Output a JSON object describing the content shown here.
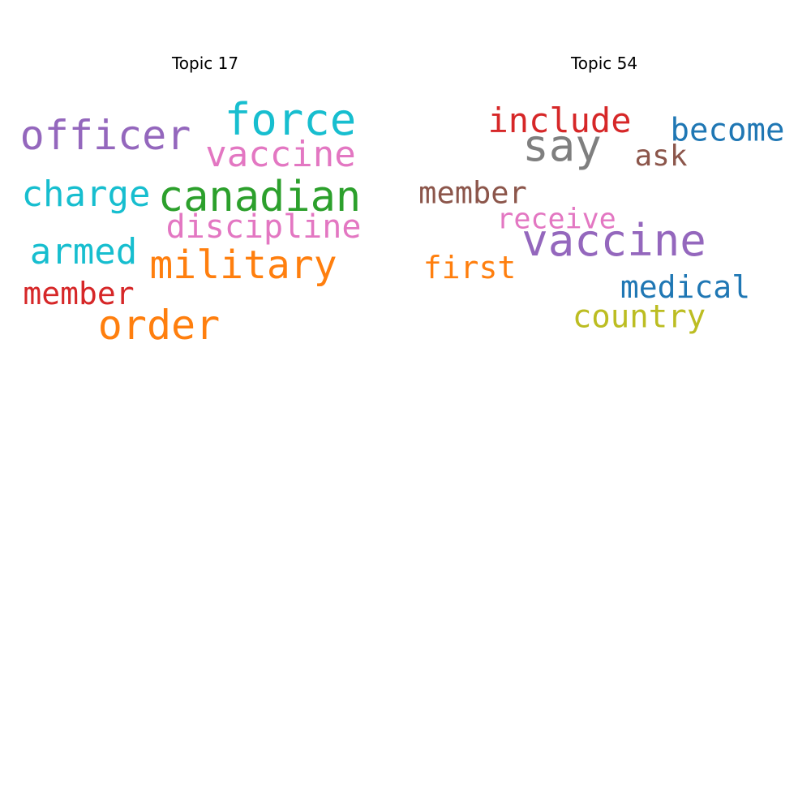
{
  "chart_data": [
    {
      "type": "wordcloud",
      "title": "Topic 17",
      "words": [
        {
          "text": "force",
          "size": 5.4,
          "color": "#17becf"
        },
        {
          "text": "officer",
          "size": 5.0,
          "color": "#9467bd"
        },
        {
          "text": "vaccine",
          "size": 4.4,
          "color": "#e377c2"
        },
        {
          "text": "charge",
          "size": 4.4,
          "color": "#17becf"
        },
        {
          "text": "canadian",
          "size": 5.2,
          "color": "#2ca02c"
        },
        {
          "text": "discipline",
          "size": 4.0,
          "color": "#e377c2"
        },
        {
          "text": "armed",
          "size": 4.4,
          "color": "#17becf"
        },
        {
          "text": "military",
          "size": 4.8,
          "color": "#ff7f0e"
        },
        {
          "text": "member",
          "size": 3.8,
          "color": "#d62728"
        },
        {
          "text": "order",
          "size": 5.0,
          "color": "#ff7f0e"
        }
      ]
    },
    {
      "type": "wordcloud",
      "title": "Topic 54",
      "words": [
        {
          "text": "include",
          "size": 4.2,
          "color": "#d62728"
        },
        {
          "text": "say",
          "size": 5.4,
          "color": "#7f7f7f"
        },
        {
          "text": "become",
          "size": 3.9,
          "color": "#1f77b4"
        },
        {
          "text": "ask",
          "size": 3.6,
          "color": "#8c564b"
        },
        {
          "text": "member",
          "size": 3.7,
          "color": "#8c564b"
        },
        {
          "text": "receive",
          "size": 3.5,
          "color": "#e377c2"
        },
        {
          "text": "vaccine",
          "size": 5.4,
          "color": "#9467bd"
        },
        {
          "text": "first",
          "size": 3.8,
          "color": "#ff7f0e"
        },
        {
          "text": "medical",
          "size": 3.8,
          "color": "#1f77b4"
        },
        {
          "text": "country",
          "size": 3.9,
          "color": "#bcbd22"
        }
      ]
    }
  ]
}
